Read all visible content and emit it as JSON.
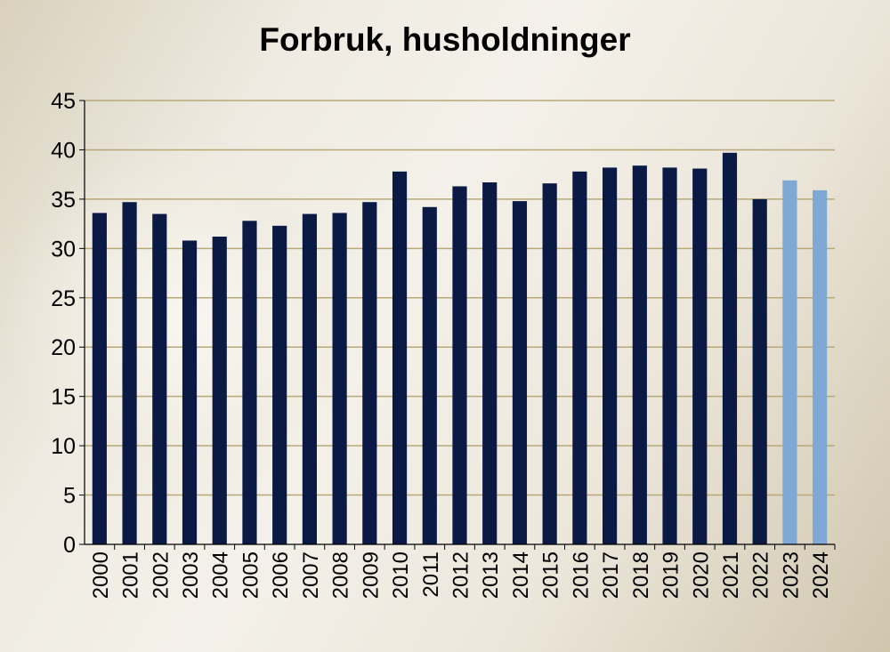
{
  "chart_data": {
    "type": "bar",
    "title": "Forbruk, husholdninger",
    "xlabel": "",
    "ylabel": "",
    "ylim": [
      0,
      45
    ],
    "yticks": [
      0,
      5,
      10,
      15,
      20,
      25,
      30,
      35,
      40,
      45
    ],
    "grid": true,
    "categories": [
      "2000",
      "2001",
      "2002",
      "2003",
      "2004",
      "2005",
      "2006",
      "2007",
      "2008",
      "2009",
      "2010",
      "2011",
      "2012",
      "2013",
      "2014",
      "2015",
      "2016",
      "2017",
      "2018",
      "2019",
      "2020",
      "2021",
      "2022",
      "2023",
      "2024"
    ],
    "values": [
      33.6,
      34.7,
      33.5,
      30.8,
      31.2,
      32.8,
      32.3,
      33.5,
      33.6,
      34.7,
      37.8,
      34.2,
      36.3,
      36.7,
      34.8,
      36.6,
      37.8,
      38.2,
      38.4,
      38.2,
      38.1,
      39.7,
      35.0,
      36.9,
      35.9
    ],
    "colors": {
      "actual": "#0a1a45",
      "projected": "#80a8d4",
      "grid": "#b8a878"
    },
    "projected_categories": [
      "2023",
      "2024"
    ]
  }
}
